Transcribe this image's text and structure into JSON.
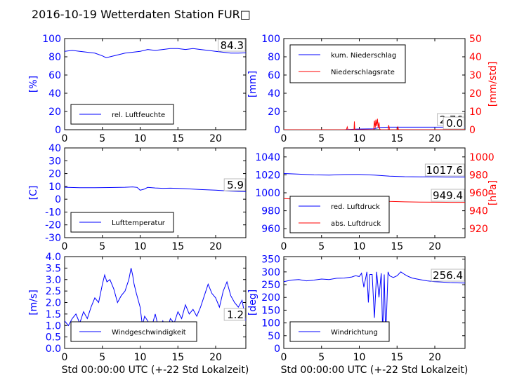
{
  "figure_title": "2016-10-19 Wetterdaten Station FUR□",
  "chart_data": [
    {
      "panel": "humidity",
      "type": "line",
      "xlim": [
        0,
        24
      ],
      "xticks": [
        0,
        5,
        10,
        15,
        20
      ],
      "ylim": [
        0,
        100
      ],
      "yticks": [
        0,
        20,
        40,
        60,
        80,
        100
      ],
      "ylabel": "[%]",
      "xlabel": "",
      "last_value_label": "84.3",
      "legend_location": "lower-left",
      "series": [
        {
          "name": "rel. Luftfeuchte",
          "color": "#0000ff",
          "axis": "left",
          "x": [
            0,
            1,
            2,
            3,
            4,
            5,
            5.5,
            6,
            7,
            8,
            9,
            10,
            11,
            12,
            13,
            14,
            15,
            16,
            17,
            18,
            19,
            20,
            21,
            22,
            23,
            24
          ],
          "y": [
            86,
            87,
            86,
            85,
            84,
            81,
            79,
            80,
            82,
            84,
            85,
            86,
            88,
            87,
            88,
            89,
            89,
            88,
            89,
            88,
            87,
            86,
            85,
            84,
            84,
            84.3
          ]
        }
      ]
    },
    {
      "panel": "precipitation",
      "type": "line",
      "xlim": [
        0,
        24
      ],
      "xticks": [
        0,
        5,
        10,
        15,
        20
      ],
      "ylim": [
        0,
        100
      ],
      "yticks": [
        0,
        20,
        40,
        60,
        80,
        100
      ],
      "ylabel": "[mm]",
      "ylim_right": [
        0,
        50
      ],
      "yticks_right": [
        0,
        10,
        20,
        30,
        40,
        50
      ],
      "ylabel_right": "[mm/std]",
      "last_value_labels": [
        "2.76",
        "0.0"
      ],
      "legend_location": "upper-left",
      "series": [
        {
          "name": "kum. Niederschlag",
          "color": "#0000ff",
          "axis": "left",
          "x": [
            0,
            8,
            9.5,
            12,
            12.6,
            14,
            24
          ],
          "y": [
            0,
            0,
            0.6,
            1.0,
            2.5,
            2.76,
            2.76
          ]
        },
        {
          "name": "Niederschlagsrate",
          "color": "#ff0000",
          "axis": "right",
          "x": [
            0,
            8.3,
            8.4,
            8.5,
            9.3,
            9.35,
            9.4,
            11.9,
            12.0,
            12.1,
            12.2,
            12.3,
            12.4,
            12.5,
            12.6,
            12.7,
            12.8,
            13.8,
            13.9,
            14.0,
            15.0,
            15.1,
            15.2,
            24
          ],
          "y": [
            0,
            0,
            1.5,
            0,
            0,
            4.5,
            0,
            0,
            5,
            1,
            5.5,
            2,
            6,
            1,
            4,
            0.5,
            0,
            0,
            2.5,
            0,
            0,
            1.5,
            0,
            0
          ]
        }
      ]
    },
    {
      "panel": "temperature",
      "type": "line",
      "xlim": [
        0,
        24
      ],
      "xticks": [
        0,
        5,
        10,
        15,
        20
      ],
      "ylim": [
        -30,
        40
      ],
      "yticks": [
        -30,
        -20,
        -10,
        0,
        10,
        20,
        30,
        40
      ],
      "ylabel": "[C]",
      "last_value_label": "5.9",
      "legend_location": "lower-left",
      "series": [
        {
          "name": "Lufttemperatur",
          "color": "#0000ff",
          "axis": "left",
          "x": [
            0,
            2,
            4,
            6,
            8,
            9,
            9.6,
            10,
            10.5,
            11,
            12,
            13,
            14,
            16,
            18,
            20,
            22,
            24
          ],
          "y": [
            9.3,
            9.0,
            9.0,
            9.1,
            9.3,
            9.6,
            9.2,
            7.0,
            7.8,
            9.2,
            8.8,
            8.5,
            8.6,
            8.2,
            7.5,
            7.0,
            6.3,
            5.9
          ]
        }
      ]
    },
    {
      "panel": "pressure",
      "type": "line",
      "xlim": [
        0,
        24
      ],
      "xticks": [
        0,
        5,
        10,
        15,
        20
      ],
      "ylim": [
        950,
        1050
      ],
      "yticks": [
        960,
        980,
        1000,
        1020,
        1040
      ],
      "ylim_right": [
        910,
        1010
      ],
      "yticks_right": [
        920,
        940,
        960,
        980,
        1000
      ],
      "ylabel_right": "[hPa]",
      "last_value_labels": [
        "1017.6",
        "949.4"
      ],
      "legend_location": "lower-left",
      "series": [
        {
          "name": "red. Luftdruck",
          "color": "#0000ff",
          "axis": "left",
          "x": [
            0,
            2,
            4,
            6,
            8,
            10,
            12,
            14,
            16,
            18,
            20,
            22,
            24
          ],
          "y": [
            1021.5,
            1020.8,
            1020,
            1019.8,
            1020.3,
            1020.4,
            1019.8,
            1018.5,
            1018,
            1017.8,
            1017.7,
            1017.6,
            1017.6
          ]
        },
        {
          "name": "abs. Luftdruck",
          "color": "#ff0000",
          "axis": "right",
          "x": [
            0,
            2,
            4,
            6,
            8,
            10,
            12,
            14,
            16,
            18,
            20,
            22,
            24
          ],
          "y": [
            953.5,
            952.7,
            951.8,
            951.4,
            951.8,
            951.9,
            951.3,
            950.4,
            949.9,
            949.6,
            949.5,
            949.4,
            949.4
          ]
        }
      ]
    },
    {
      "panel": "wind_speed",
      "type": "line",
      "xlim": [
        0,
        24
      ],
      "xticks": [
        0,
        5,
        10,
        15,
        20
      ],
      "ylim": [
        0,
        4
      ],
      "yticks": [
        0.0,
        0.5,
        1.0,
        1.5,
        2.0,
        2.5,
        3.0,
        3.5,
        4.0
      ],
      "ylabel": "[m/s]",
      "xlabel": "Std 00:00:00 UTC (+-22 Std Lokalzeit)",
      "last_value_label": "1.2",
      "legend_location": "lower-left",
      "series": [
        {
          "name": "Windgeschwindigkeit",
          "color": "#0000ff",
          "axis": "left",
          "x": [
            0,
            0.5,
            1,
            1.5,
            2,
            2.5,
            3,
            3.5,
            4,
            4.5,
            5,
            5.3,
            5.6,
            6,
            6.5,
            7,
            7.5,
            8,
            8.5,
            8.8,
            9,
            9.2,
            9.5,
            10,
            10.3,
            10.6,
            11,
            11.5,
            12,
            12.5,
            13,
            13.5,
            14,
            14.5,
            15,
            15.5,
            16,
            16.5,
            17,
            17.5,
            18,
            18.5,
            19,
            19.5,
            20,
            20.5,
            21,
            21.5,
            22,
            22.5,
            23,
            23.5,
            24
          ],
          "y": [
            1.2,
            1.0,
            1.3,
            1.5,
            1.1,
            1.6,
            1.3,
            1.8,
            2.2,
            2.0,
            2.8,
            3.2,
            2.9,
            3.0,
            2.6,
            2.0,
            2.3,
            2.5,
            3.0,
            3.5,
            3.2,
            2.8,
            2.4,
            1.8,
            1.0,
            1.4,
            1.2,
            0.9,
            1.5,
            0.8,
            1.2,
            0.7,
            1.3,
            1.1,
            1.6,
            1.3,
            1.9,
            1.5,
            1.7,
            1.4,
            1.8,
            2.3,
            2.8,
            2.4,
            2.2,
            1.8,
            2.5,
            2.9,
            2.3,
            2.0,
            1.8,
            2.1,
            1.2
          ]
        }
      ]
    },
    {
      "panel": "wind_direction",
      "type": "line",
      "xlim": [
        0,
        24
      ],
      "xticks": [
        0,
        5,
        10,
        15,
        20
      ],
      "ylim": [
        0,
        360
      ],
      "yticks": [
        0,
        50,
        100,
        150,
        200,
        250,
        300,
        350
      ],
      "ylabel": "[deg]",
      "xlabel": "Std 00:00:00 UTC (+-22 Std Lokalzeit)",
      "last_value_label": "256.4",
      "legend_location": "lower-left",
      "series": [
        {
          "name": "Windrichtung",
          "color": "#0000ff",
          "axis": "left",
          "x": [
            0,
            1,
            2,
            3,
            4,
            5,
            6,
            7,
            8,
            9,
            9.5,
            10,
            10.3,
            10.6,
            11,
            11.2,
            11.4,
            11.7,
            12,
            12.3,
            12.6,
            12.9,
            13.1,
            13.3,
            13.5,
            13.8,
            14,
            14.5,
            15,
            15.5,
            16,
            16.5,
            17,
            18,
            19,
            20,
            21,
            22,
            23,
            24
          ],
          "y": [
            262,
            268,
            270,
            265,
            268,
            272,
            270,
            275,
            276,
            280,
            285,
            282,
            295,
            240,
            300,
            180,
            290,
            290,
            120,
            300,
            200,
            295,
            60,
            290,
            40,
            300,
            285,
            278,
            285,
            300,
            290,
            282,
            276,
            270,
            265,
            262,
            260,
            258,
            257,
            256.4
          ]
        }
      ]
    }
  ]
}
